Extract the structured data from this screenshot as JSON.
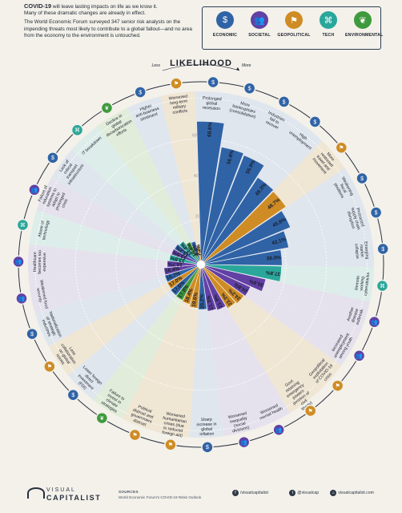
{
  "intro": {
    "line1_bold": "COVID-19",
    "line1_rest": " will leave lasting impacts on life as we know it.",
    "line2": "Many of these dramatic changes are already in effect.",
    "line3": "The World Economic Forum surveyed 347 senior risk analysts on the impending threats most likely to contribute to a global fallout—and no area from the economy to the environment is untouched."
  },
  "legend": [
    {
      "label": "ECONOMIC",
      "color": "#3063a6",
      "icon": "economic-icon",
      "glyph": "$"
    },
    {
      "label": "SOCIETAL",
      "color": "#6240a4",
      "icon": "societal-icon",
      "glyph": "👥"
    },
    {
      "label": "GEOPOLITICAL",
      "color": "#cf8c24",
      "icon": "geopolitical-icon",
      "glyph": "⚑"
    },
    {
      "label": "TECH",
      "color": "#2aa69a",
      "icon": "tech-icon",
      "glyph": "⌘"
    },
    {
      "label": "ENVIRONMENTAL",
      "color": "#3f9a3e",
      "icon": "environmental-icon",
      "glyph": "❦"
    }
  ],
  "chart_data": {
    "type": "radial-bar",
    "title": "LIKELIHOOD",
    "arrow_less": "Less",
    "arrow_more": "More",
    "ring_labels": [
      "20%",
      "40%",
      "60%"
    ],
    "categories": [
      {
        "label": "Prolonged global recession",
        "value": 68.6,
        "cat": "economic"
      },
      {
        "label": "More bankruptcies (consolidation)",
        "value": 56.8,
        "cat": "economic"
      },
      {
        "label": "Industries fail to recover",
        "value": 55.9,
        "cat": "economic"
      },
      {
        "label": "High unemployment",
        "value": 49.3,
        "cat": "economic"
      },
      {
        "label": "More restricted travel and movement",
        "value": 48.7,
        "cat": "geopolitical"
      },
      {
        "label": "Weakening fiscal positions",
        "value": 45.8,
        "cat": "economic"
      },
      {
        "label": "Protracted supply chain disruption",
        "value": 42.1,
        "cat": "economic"
      },
      {
        "label": "Emerging market collapse",
        "value": 38.0,
        "cat": "economic"
      },
      {
        "label": "Remote working cyberattacks",
        "value": 37.8,
        "cat": "tech"
      },
      {
        "label": "Another disease outbreak",
        "value": 30.8,
        "cat": "societal"
      },
      {
        "label": "Increased unemployment among youth",
        "value": 24.8,
        "cat": "societal"
      },
      {
        "label": "Geopolitical exploitation of COVID-19 crisis",
        "value": 24.2,
        "cat": "geopolitical"
      },
      {
        "label": "Govt. retaining emergency powers (erosion of civil liberty)",
        "value": 23.3,
        "cat": "geopolitical"
      },
      {
        "label": "Worsened mental health",
        "value": 21.9,
        "cat": "societal"
      },
      {
        "label": "Worsened inequality (social divisions)",
        "value": 21.3,
        "cat": "societal"
      },
      {
        "label": "Sharp increase in global inflation",
        "value": 20.2,
        "cat": "economic"
      },
      {
        "label": "Worsened humanitarian crises (due to reduced foreign aid)",
        "value": 19.6,
        "cat": "geopolitical"
      },
      {
        "label": "Political distrust and government distrust",
        "value": 18.4,
        "cat": "geopolitical"
      },
      {
        "label": "Failure to invest in climate strategies",
        "value": 17.9,
        "cat": "environmental"
      },
      {
        "label": "Lower foreign direct investment (FDI)",
        "value": 17.6,
        "cat": "economic"
      },
      {
        "label": "Less collaboration on global issues",
        "value": 17.0,
        "cat": "geopolitical"
      },
      {
        "label": "Nationalization of strategic industries",
        "value": 16.7,
        "cat": "economic"
      },
      {
        "label": "Weakened food security",
        "value": 16.4,
        "cat": "societal"
      },
      {
        "label": "Healthcare becomes too expensive",
        "value": 14.7,
        "cat": "societal"
      },
      {
        "label": "Abuse of technology",
        "value": 13.8,
        "cat": "tech"
      },
      {
        "label": "Failure of education systems to adapt to prolonged crisis",
        "value": 13.5,
        "cat": "societal"
      },
      {
        "label": "Lack of critical transport infrastructure",
        "value": 13.2,
        "cat": "economic"
      },
      {
        "label": "IT breakdown",
        "value": 12.4,
        "cat": "tech"
      },
      {
        "label": "Decline in global decarbonization efforts",
        "value": 10.4,
        "cat": "environmental"
      },
      {
        "label": "Higher anti-business sentiment",
        "value": 9.8,
        "cat": "economic"
      },
      {
        "label": "Worsened long-term military conflicts",
        "value": 7.2,
        "cat": "geopolitical"
      }
    ]
  },
  "footer": {
    "logo_top": "VISUAL",
    "logo_bottom": "CAPITALIST",
    "sources_heading": "SOURCES",
    "sources_text": "World Economic Forum's COVID-19 Risks Outlook",
    "social": [
      {
        "icon": "facebook-icon",
        "glyph": "f",
        "label": "/visualcapitalist"
      },
      {
        "icon": "twitter-icon",
        "glyph": "t",
        "label": "@visualcap"
      },
      {
        "icon": "website-icon",
        "glyph": "⌂",
        "label": "visualcapitalist.com"
      }
    ]
  }
}
